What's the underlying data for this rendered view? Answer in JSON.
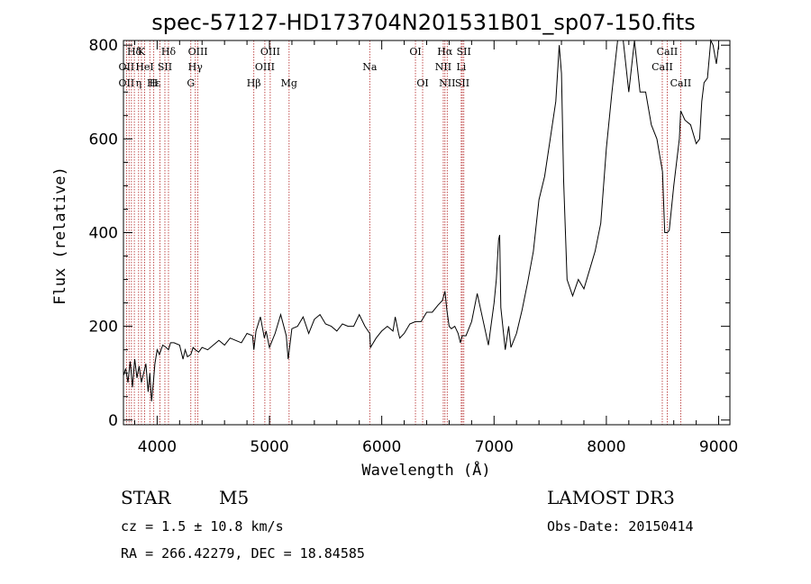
{
  "chart_data": {
    "type": "line",
    "title": "spec-57127-HD173704N201531B01_sp07-150.fits",
    "xlabel": "Wavelength (Å)",
    "ylabel": "Flux (relative)",
    "xlim": [
      3700,
      9100
    ],
    "ylim": [
      -10,
      810
    ],
    "x_ticks": [
      4000,
      5000,
      6000,
      7000,
      8000,
      9000
    ],
    "y_ticks": [
      0,
      200,
      400,
      600,
      800
    ],
    "grid": false,
    "series": [
      {
        "x": [
          3700,
          3720,
          3740,
          3760,
          3780,
          3800,
          3820,
          3840,
          3860,
          3880,
          3900,
          3920,
          3935,
          3950,
          3968,
          3980,
          4000,
          4020,
          4050,
          4080,
          4101,
          4120,
          4150,
          4200,
          4230,
          4250,
          4270,
          4300,
          4320,
          4340,
          4370,
          4400,
          4450,
          4500,
          4550,
          4600,
          4650,
          4700,
          4750,
          4800,
          4850,
          4861,
          4880,
          4920,
          4955,
          4970,
          5000,
          5050,
          5100,
          5150,
          5167,
          5200,
          5250,
          5300,
          5350,
          5400,
          5450,
          5500,
          5550,
          5600,
          5650,
          5700,
          5750,
          5800,
          5850,
          5893,
          5900,
          5950,
          6000,
          6050,
          6100,
          6120,
          6150,
          6160,
          6200,
          6250,
          6300,
          6350,
          6400,
          6450,
          6500,
          6540,
          6563,
          6580,
          6600,
          6620,
          6650,
          6680,
          6700,
          6717,
          6750,
          6800,
          6850,
          6900,
          6950,
          7000,
          7020,
          7040,
          7050,
          7060,
          7100,
          7130,
          7150,
          7200,
          7250,
          7300,
          7350,
          7400,
          7450,
          7500,
          7550,
          7580,
          7600,
          7620,
          7650,
          7700,
          7750,
          7800,
          7850,
          7900,
          7950,
          8000,
          8050,
          8100,
          8150,
          8200,
          8250,
          8300,
          8350,
          8400,
          8450,
          8500,
          8520,
          8542,
          8560,
          8600,
          8650,
          8662,
          8700,
          8750,
          8800,
          8830,
          8850,
          8870,
          8900,
          8930,
          8950,
          8980,
          9000
        ],
        "values": [
          95,
          110,
          80,
          125,
          70,
          130,
          90,
          115,
          80,
          100,
          120,
          60,
          100,
          40,
          85,
          120,
          150,
          140,
          160,
          155,
          150,
          165,
          165,
          160,
          130,
          150,
          135,
          140,
          155,
          150,
          145,
          155,
          150,
          160,
          170,
          160,
          175,
          170,
          165,
          185,
          180,
          150,
          190,
          220,
          175,
          190,
          155,
          185,
          225,
          180,
          130,
          195,
          200,
          220,
          185,
          215,
          225,
          205,
          200,
          190,
          205,
          200,
          200,
          225,
          200,
          185,
          155,
          175,
          190,
          200,
          190,
          220,
          185,
          175,
          185,
          205,
          210,
          210,
          230,
          230,
          245,
          255,
          275,
          235,
          200,
          195,
          200,
          185,
          165,
          180,
          180,
          210,
          270,
          215,
          160,
          250,
          300,
          385,
          395,
          240,
          150,
          200,
          155,
          185,
          235,
          295,
          360,
          470,
          520,
          600,
          680,
          800,
          740,
          510,
          300,
          265,
          300,
          280,
          320,
          360,
          420,
          580,
          700,
          810,
          810,
          700,
          820,
          700,
          700,
          630,
          600,
          530,
          400,
          400,
          405,
          500,
          600,
          660,
          640,
          630,
          590,
          600,
          680,
          720,
          730,
          820,
          800,
          760,
          800
        ]
      }
    ],
    "spectral_lines": [
      {
        "label": "Hδ",
        "x": 3797,
        "row": 0
      },
      {
        "label": "K",
        "x": 3860,
        "row": 0
      },
      {
        "label": "Hδ",
        "x": 4101,
        "row": 0
      },
      {
        "label": "OIII",
        "x": 4363,
        "row": 0
      },
      {
        "label": "OIII",
        "x": 5007,
        "row": 0
      },
      {
        "label": "OI",
        "x": 6300,
        "row": 0
      },
      {
        "label": "Hα",
        "x": 6563,
        "row": 0
      },
      {
        "label": "SII",
        "x": 6731,
        "row": 0
      },
      {
        "label": "CaII",
        "x": 8542,
        "row": 0
      },
      {
        "label": "OII",
        "x": 3727,
        "row": 1
      },
      {
        "label": "HeI",
        "x": 3889,
        "row": 1
      },
      {
        "label": "SII",
        "x": 4069,
        "row": 1
      },
      {
        "label": "Hγ",
        "x": 4340,
        "row": 1
      },
      {
        "label": "OIII",
        "x": 4959,
        "row": 1
      },
      {
        "label": "Na",
        "x": 5893,
        "row": 1
      },
      {
        "label": "NII",
        "x": 6548,
        "row": 1
      },
      {
        "label": "Li",
        "x": 6708,
        "row": 1
      },
      {
        "label": "CaII",
        "x": 8498,
        "row": 1
      },
      {
        "label": "OII",
        "x": 3727,
        "row": 2
      },
      {
        "label": "Hε",
        "x": 3970,
        "row": 2
      },
      {
        "label": "η",
        "x": 3835,
        "row": 2
      },
      {
        "label": "H",
        "x": 3968,
        "row": 2
      },
      {
        "label": "G",
        "x": 4300,
        "row": 2
      },
      {
        "label": "Hβ",
        "x": 4861,
        "row": 2
      },
      {
        "label": "Mg",
        "x": 5175,
        "row": 2
      },
      {
        "label": "OI",
        "x": 6364,
        "row": 2
      },
      {
        "label": "NII",
        "x": 6583,
        "row": 2
      },
      {
        "label": "SII",
        "x": 6717,
        "row": 2
      },
      {
        "label": "CaII",
        "x": 8662,
        "row": 2
      }
    ],
    "line_marks": [
      3727,
      3750,
      3771,
      3797,
      3835,
      3860,
      3889,
      3935,
      3970,
      4025,
      4069,
      4101,
      4300,
      4340,
      4363,
      4861,
      4959,
      5007,
      5175,
      5893,
      6300,
      6364,
      6548,
      6563,
      6583,
      6708,
      6717,
      6731,
      8498,
      8542,
      8662
    ]
  },
  "info": {
    "object_class": "STAR",
    "subclass": "M5",
    "survey": "LAMOST DR3",
    "redshift_text": "cz = 1.5 ± 10.8 km/s",
    "obs_date_text": "Obs-Date: 20150414",
    "coords_text": "RA = 266.42279, DEC =  18.84585"
  },
  "colors": {
    "line_marker": "#b22222",
    "spectrum": "#000000"
  }
}
